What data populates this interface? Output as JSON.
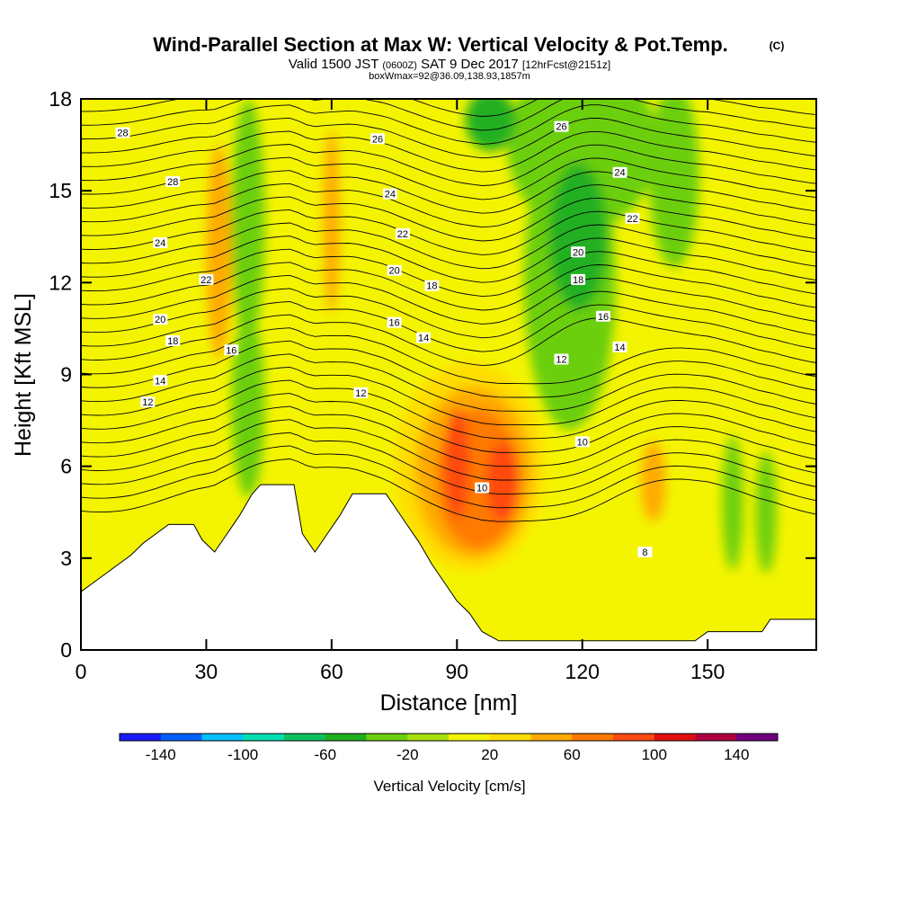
{
  "title": {
    "main": "Wind-Parallel Section at Max W: Vertical Velocity & Pot.Temp.",
    "copyright": "(C)",
    "valid_prefix": "Valid 1500 JST",
    "valid_zulu": "(0600Z)",
    "valid_date": "SAT 9 Dec 2017",
    "forecast": "[12hrFcst@2151z]",
    "box_info": "boxWmax=92@36.09,138.93,1857m"
  },
  "chart_data": {
    "type": "contour",
    "xlabel": "Distance [nm]",
    "ylabel": "Height [Kft MSL]",
    "xlim": [
      0,
      176
    ],
    "ylim": [
      0,
      18
    ],
    "x_ticks": [
      0,
      30,
      60,
      90,
      120,
      150
    ],
    "y_ticks": [
      0,
      3,
      6,
      9,
      12,
      15,
      18
    ],
    "colorbar": {
      "label": "Vertical Velocity [cm/s]",
      "levels": [
        -160,
        -140,
        -120,
        -100,
        -80,
        -60,
        -40,
        -20,
        0,
        20,
        40,
        60,
        80,
        100,
        120,
        140,
        160
      ],
      "tick_labels": [
        -140,
        -100,
        -60,
        -20,
        20,
        60,
        100,
        140
      ],
      "colors": [
        "#1a1aff",
        "#0060ff",
        "#00c0ff",
        "#00e0b0",
        "#10c060",
        "#20b020",
        "#6ccf10",
        "#a8e010",
        "#f4f400",
        "#ffdd00",
        "#ffaa00",
        "#ff7a00",
        "#ff4a10",
        "#e01010",
        "#b00040",
        "#700080"
      ]
    },
    "terrain": [
      [
        0,
        1.9
      ],
      [
        3,
        2.2
      ],
      [
        6,
        2.5
      ],
      [
        9,
        2.8
      ],
      [
        12,
        3.1
      ],
      [
        15,
        3.5
      ],
      [
        18,
        3.8
      ],
      [
        21,
        4.1
      ],
      [
        27,
        4.1
      ],
      [
        29,
        3.6
      ],
      [
        32,
        3.2
      ],
      [
        35,
        3.8
      ],
      [
        38,
        4.4
      ],
      [
        41,
        5.1
      ],
      [
        43,
        5.4
      ],
      [
        51,
        5.4
      ],
      [
        53,
        3.8
      ],
      [
        56,
        3.2
      ],
      [
        59,
        3.8
      ],
      [
        62,
        4.4
      ],
      [
        65,
        5.1
      ],
      [
        73,
        5.1
      ],
      [
        75,
        4.7
      ],
      [
        78,
        4.1
      ],
      [
        81,
        3.5
      ],
      [
        84,
        2.8
      ],
      [
        87,
        2.2
      ],
      [
        90,
        1.6
      ],
      [
        93,
        1.2
      ],
      [
        96,
        0.6
      ],
      [
        100,
        0.3
      ],
      [
        135,
        0.3
      ],
      [
        147,
        0.3
      ],
      [
        150,
        0.6
      ],
      [
        163,
        0.6
      ],
      [
        165,
        1.0
      ],
      [
        176,
        1.0
      ]
    ],
    "w_cells": [
      {
        "x": 93,
        "y": 6.0,
        "rx": 18,
        "ry": 3.4,
        "value": 20
      },
      {
        "x": 94,
        "y": 5.8,
        "rx": 14,
        "ry": 2.8,
        "value": 40
      },
      {
        "x": 95,
        "y": 5.6,
        "rx": 10,
        "ry": 2.3,
        "value": 60
      },
      {
        "x": 90,
        "y": 6.1,
        "rx": 3,
        "ry": 1.8,
        "value": 80
      },
      {
        "x": 101,
        "y": 5.5,
        "rx": 4,
        "ry": 1.3,
        "value": 80
      },
      {
        "x": 120,
        "y": 16.5,
        "rx": 18,
        "ry": 2.8,
        "value": -40
      },
      {
        "x": 117,
        "y": 12.0,
        "rx": 11,
        "ry": 4.8,
        "value": -40
      },
      {
        "x": 119,
        "y": 13.5,
        "rx": 7,
        "ry": 2.4,
        "value": -60
      },
      {
        "x": 98,
        "y": 17.3,
        "rx": 6,
        "ry": 1.0,
        "value": -60
      },
      {
        "x": 142,
        "y": 15.5,
        "rx": 6,
        "ry": 3.0,
        "value": -40
      },
      {
        "x": 40,
        "y": 14.0,
        "rx": 4,
        "ry": 4.0,
        "value": -40
      },
      {
        "x": 156,
        "y": 4.8,
        "rx": 2.5,
        "ry": 2.2,
        "value": -40
      },
      {
        "x": 164,
        "y": 4.5,
        "rx": 2.5,
        "ry": 2.0,
        "value": -40
      },
      {
        "x": 137,
        "y": 5.5,
        "rx": 3,
        "ry": 1.3,
        "value": 40
      },
      {
        "x": 60,
        "y": 14.0,
        "rx": 2,
        "ry": 3.0,
        "value": 40
      },
      {
        "x": 33,
        "y": 13.0,
        "rx": 3,
        "ry": 3.5,
        "value": 40
      },
      {
        "x": 40,
        "y": 8.0,
        "rx": 4,
        "ry": 3.0,
        "value": -40
      }
    ],
    "theta_contour_labels": [
      {
        "value": 28,
        "x": 10,
        "y": 16.9
      },
      {
        "value": 28,
        "x": 22,
        "y": 15.3
      },
      {
        "value": 24,
        "x": 19,
        "y": 13.3
      },
      {
        "value": 22,
        "x": 30,
        "y": 12.1
      },
      {
        "value": 20,
        "x": 19,
        "y": 10.8
      },
      {
        "value": 18,
        "x": 22,
        "y": 10.1
      },
      {
        "value": 16,
        "x": 36,
        "y": 9.8
      },
      {
        "value": 14,
        "x": 19,
        "y": 8.8
      },
      {
        "value": 12,
        "x": 16,
        "y": 8.1
      },
      {
        "value": 26,
        "x": 71,
        "y": 16.7
      },
      {
        "value": 24,
        "x": 74,
        "y": 14.9
      },
      {
        "value": 22,
        "x": 77,
        "y": 13.6
      },
      {
        "value": 20,
        "x": 75,
        "y": 12.4
      },
      {
        "value": 18,
        "x": 84,
        "y": 11.9
      },
      {
        "value": 16,
        "x": 75,
        "y": 10.7
      },
      {
        "value": 14,
        "x": 82,
        "y": 10.2
      },
      {
        "value": 12,
        "x": 67,
        "y": 8.4
      },
      {
        "value": 10,
        "x": 96,
        "y": 5.3
      },
      {
        "value": 26,
        "x": 115,
        "y": 17.1
      },
      {
        "value": 24,
        "x": 129,
        "y": 15.6
      },
      {
        "value": 22,
        "x": 132,
        "y": 14.1
      },
      {
        "value": 20,
        "x": 119,
        "y": 13.0
      },
      {
        "value": 18,
        "x": 119,
        "y": 12.1
      },
      {
        "value": 16,
        "x": 125,
        "y": 10.9
      },
      {
        "value": 14,
        "x": 129,
        "y": 9.9
      },
      {
        "value": 12,
        "x": 115,
        "y": 9.5
      },
      {
        "value": 10,
        "x": 120,
        "y": 6.8
      },
      {
        "value": 8,
        "x": 135,
        "y": 3.2
      }
    ]
  }
}
